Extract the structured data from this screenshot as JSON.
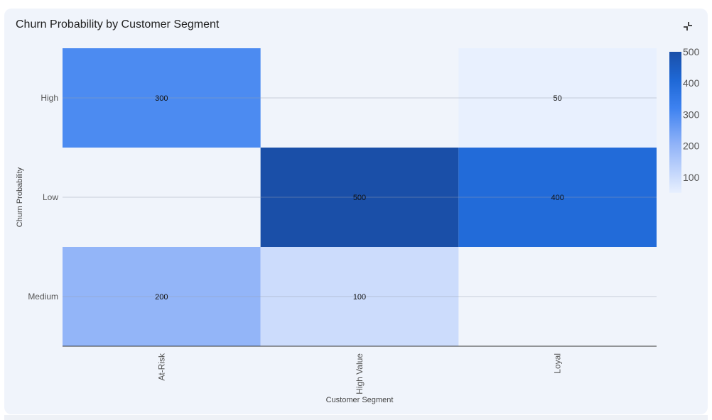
{
  "card": {
    "title": "Churn Probability by Customer Segment",
    "collapse_icon": "collapse-icon"
  },
  "chart_data": {
    "type": "heatmap",
    "xlabel": "Customer Segment",
    "ylabel": "Churn Probability",
    "x_categories": [
      "At-Risk",
      "High Value",
      "Loyal"
    ],
    "y_categories": [
      "High",
      "Low",
      "Medium"
    ],
    "cells": [
      {
        "x": "At-Risk",
        "y": "High",
        "value": 300
      },
      {
        "x": "Loyal",
        "y": "High",
        "value": 50
      },
      {
        "x": "High Value",
        "y": "Low",
        "value": 500
      },
      {
        "x": "Loyal",
        "y": "Low",
        "value": 400
      },
      {
        "x": "At-Risk",
        "y": "Medium",
        "value": 200
      },
      {
        "x": "High Value",
        "y": "Medium",
        "value": 100
      }
    ],
    "colorscale": {
      "min": 50,
      "max": 500,
      "ticks": [
        100,
        200,
        300,
        400,
        500
      ],
      "colors": [
        "#e8f0fe",
        "#1a4fa8"
      ]
    },
    "grid": true,
    "legend": "colorbar-right"
  }
}
